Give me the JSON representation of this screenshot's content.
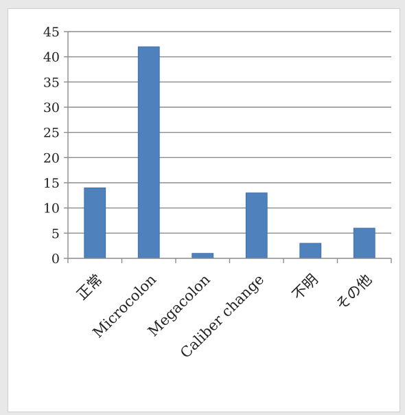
{
  "chart_data": {
    "type": "bar",
    "title": "",
    "xlabel": "",
    "ylabel": "",
    "categories": [
      "正常",
      "Microcolon",
      "Megacolon",
      "Caliber change",
      "不明",
      "その他"
    ],
    "values": [
      14,
      42,
      1,
      13,
      3,
      6
    ],
    "ylim": [
      0,
      45
    ],
    "yticks": [
      0,
      5,
      10,
      15,
      20,
      25,
      30,
      35,
      40,
      45
    ],
    "grid": true,
    "legend": "none",
    "colors": {
      "bar": "#4f81bd",
      "bar_edge": "#3a6aa3",
      "grid": "#8c8c8c",
      "axis": "#8c8c8c"
    }
  }
}
